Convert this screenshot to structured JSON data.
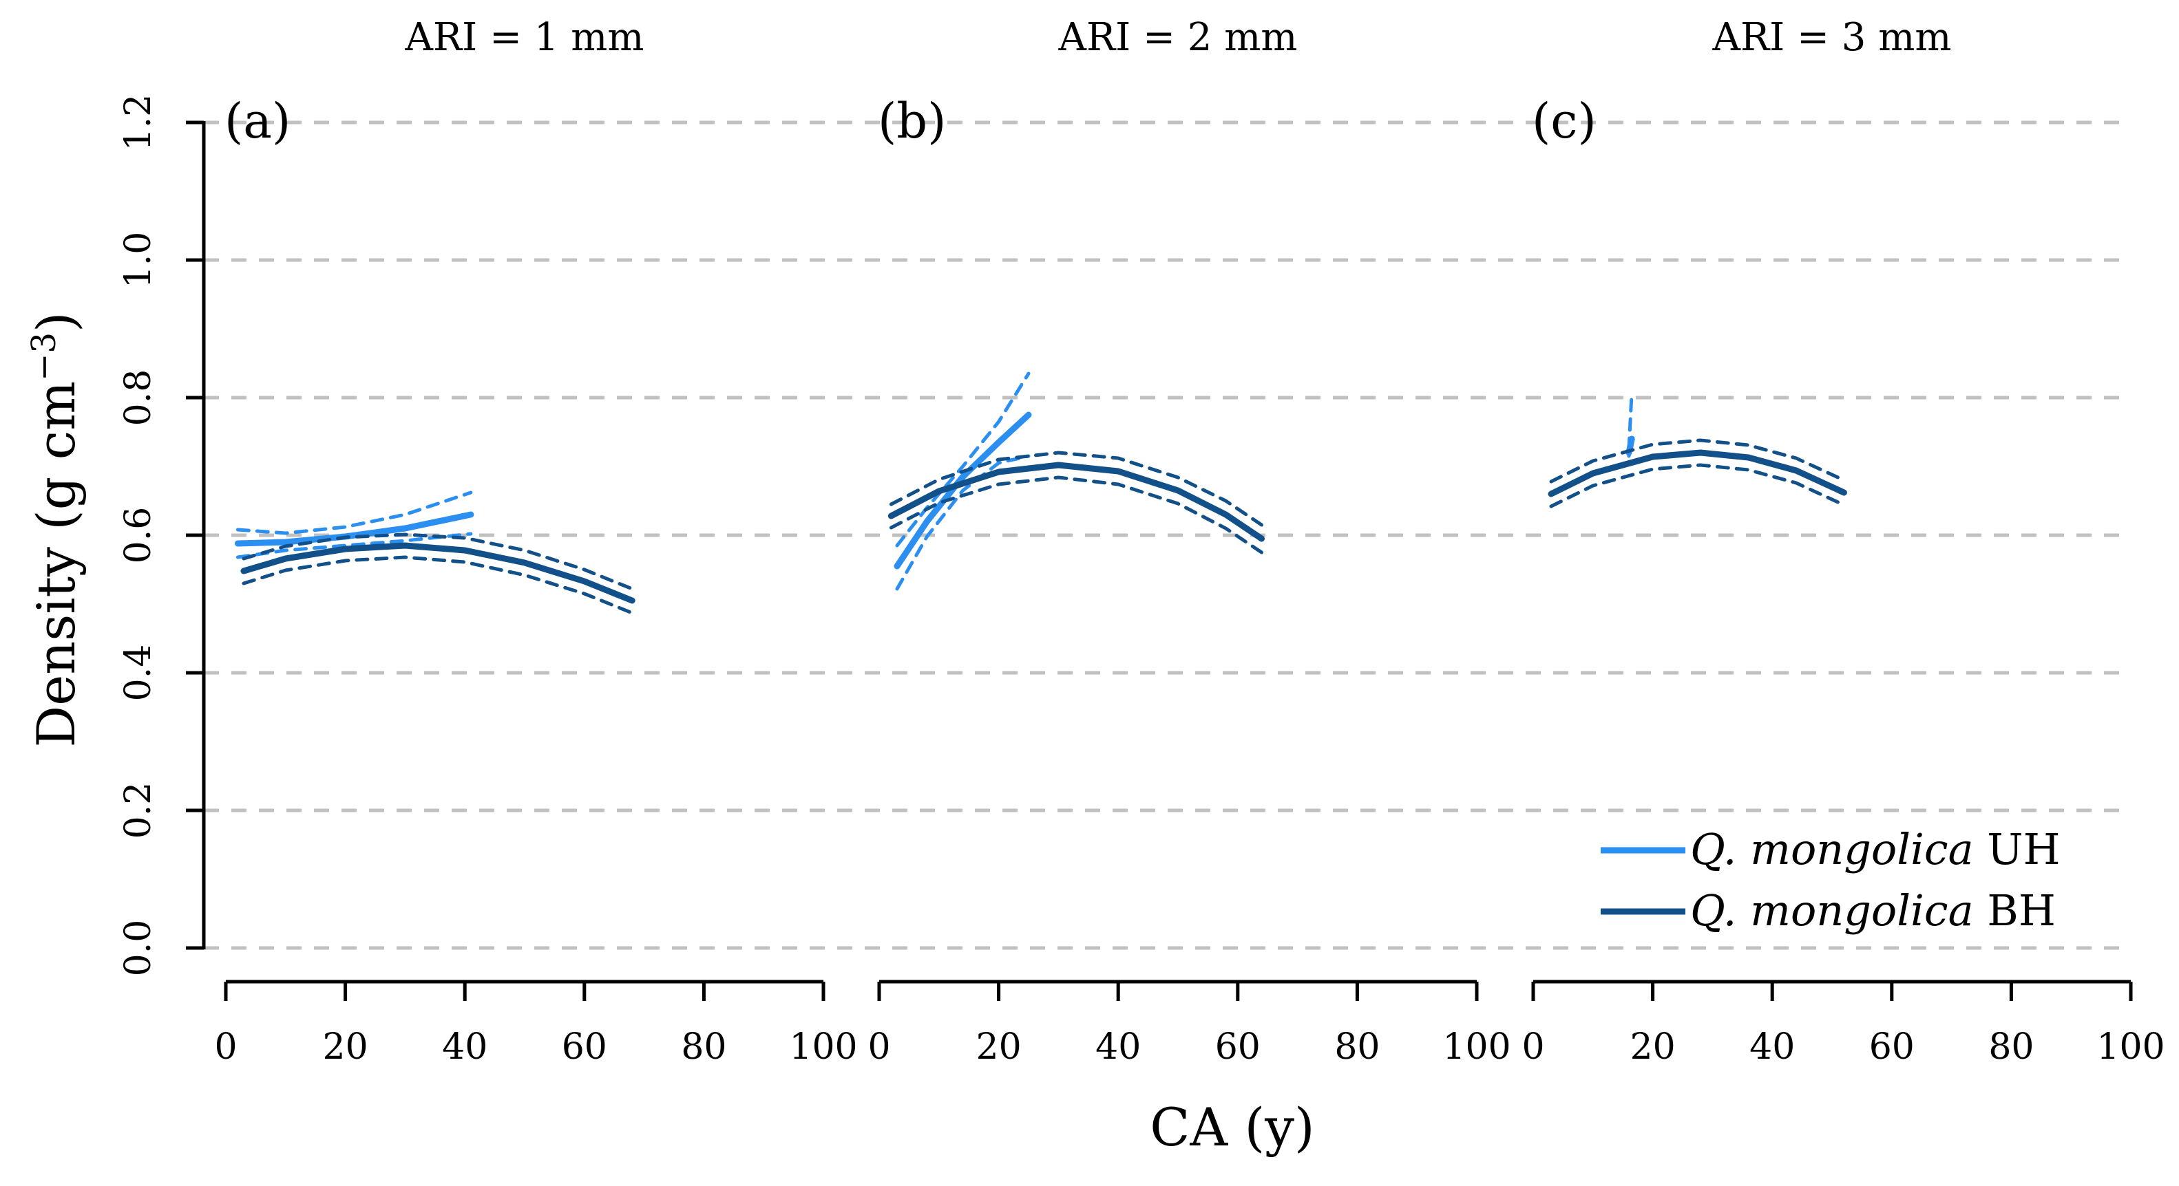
{
  "chart_data": {
    "type": "line",
    "ylabel": "Density (g cm",
    "ylabel_superscript": "−3",
    "ylabel_close": ")",
    "xlabel": "CA (y)",
    "ylim": [
      0,
      1.2
    ],
    "yticks": [
      "0.0",
      "0.2",
      "0.4",
      "0.6",
      "0.8",
      "1.0",
      "1.2"
    ],
    "yticks_values": [
      0,
      0.2,
      0.4,
      0.6,
      0.8,
      1.0,
      1.2
    ],
    "xlim": [
      0,
      100
    ],
    "xticks": [
      "0",
      "20",
      "40",
      "60",
      "80",
      "100"
    ],
    "xticks_values": [
      0,
      20,
      40,
      60,
      80,
      100
    ],
    "grid": "horizontal dashed",
    "colors": {
      "UH": "#2a8ff0",
      "BH": "#12508a",
      "grid": "#c0c0c0",
      "axis": "#000000"
    },
    "legend": {
      "placement": "bottom-right",
      "entries": [
        {
          "species": "Q. mongolica",
          "group": "UH",
          "color": "#2a8ff0"
        },
        {
          "species": "Q. mongolica",
          "group": "BH",
          "color": "#12508a"
        }
      ]
    },
    "panels": [
      {
        "title": "ARI = 1 mm",
        "tag": "(a)",
        "series": [
          {
            "name": "Q. mongolica UH",
            "color": "#2a8ff0",
            "x": [
              2,
              10,
              20,
              30,
              41
            ],
            "fit": [
              0.588,
              0.59,
              0.598,
              0.61,
              0.63
            ],
            "upper": [
              0.608,
              0.603,
              0.612,
              0.63,
              0.662
            ],
            "lower": [
              0.568,
              0.578,
              0.585,
              0.592,
              0.602
            ]
          },
          {
            "name": "Q. mongolica BH",
            "color": "#12508a",
            "x": [
              3,
              10,
              20,
              30,
              40,
              50,
              60,
              68
            ],
            "fit": [
              0.548,
              0.566,
              0.58,
              0.585,
              0.578,
              0.56,
              0.533,
              0.505
            ],
            "upper": [
              0.566,
              0.584,
              0.597,
              0.601,
              0.596,
              0.578,
              0.55,
              0.522
            ],
            "lower": [
              0.53,
              0.549,
              0.563,
              0.568,
              0.561,
              0.542,
              0.515,
              0.487
            ]
          }
        ]
      },
      {
        "title": "ARI = 2 mm",
        "tag": "(b)",
        "series": [
          {
            "name": "Q. mongolica UH",
            "color": "#2a8ff0",
            "x": [
              3,
              8,
              14,
              20,
              25
            ],
            "fit": [
              0.555,
              0.62,
              0.685,
              0.735,
              0.775
            ],
            "upper": [
              0.585,
              0.64,
              0.7,
              0.765,
              0.835
            ],
            "lower": [
              0.522,
              0.598,
              0.665,
              0.705,
              0.715
            ]
          },
          {
            "name": "Q. mongolica BH",
            "color": "#12508a",
            "x": [
              2,
              10,
              20,
              30,
              40,
              50,
              58,
              64
            ],
            "fit": [
              0.628,
              0.664,
              0.692,
              0.702,
              0.693,
              0.665,
              0.63,
              0.595
            ],
            "upper": [
              0.645,
              0.681,
              0.71,
              0.72,
              0.712,
              0.684,
              0.65,
              0.615
            ],
            "lower": [
              0.611,
              0.647,
              0.674,
              0.684,
              0.674,
              0.646,
              0.61,
              0.575
            ]
          }
        ]
      },
      {
        "title": "ARI = 3 mm",
        "tag": "(c)",
        "series": [
          {
            "name": "Q. mongolica UH",
            "color": "#2a8ff0",
            "x": [
              16,
              16.5
            ],
            "fit": [
              0.72,
              0.74
            ],
            "upper": [
              0.725,
              0.808
            ],
            "lower": [
              0.715,
              0.73
            ]
          },
          {
            "name": "Q. mongolica BH",
            "color": "#12508a",
            "x": [
              3,
              10,
              20,
              28,
              36,
              44,
              52
            ],
            "fit": [
              0.66,
              0.69,
              0.714,
              0.72,
              0.713,
              0.694,
              0.662
            ],
            "upper": [
              0.678,
              0.708,
              0.732,
              0.738,
              0.731,
              0.712,
              0.68
            ],
            "lower": [
              0.642,
              0.672,
              0.696,
              0.702,
              0.695,
              0.676,
              0.644
            ]
          }
        ]
      }
    ]
  }
}
